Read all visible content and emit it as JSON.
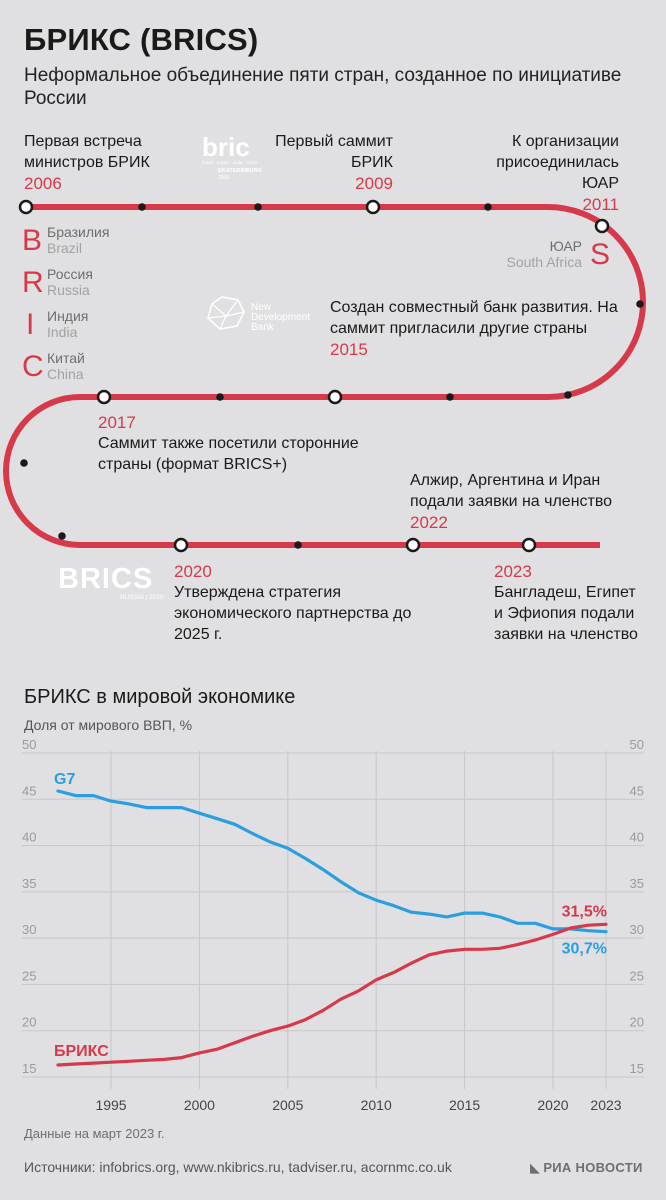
{
  "header": {
    "title": "БРИКС (BRICS)",
    "subtitle": "Неформальное объединение пяти стран, созданное по инициативе России"
  },
  "timeline": {
    "events": [
      {
        "year": "2006",
        "text": "Первая встреча министров БРИК"
      },
      {
        "year": "2009",
        "text": "Первый саммит БРИК"
      },
      {
        "year": "2011",
        "text": "К организации присоединилась ЮАР"
      },
      {
        "year": "2015",
        "text": "Создан совместный банк развития. На саммит пригласили другие страны"
      },
      {
        "year": "2017",
        "text": "Саммит также посетили сторонние страны (формат BRICS+)"
      },
      {
        "year": "2022",
        "text": "Алжир, Аргентина и Иран подали заявки на членство"
      },
      {
        "year": "2020",
        "text": "Утверждена стратегия экономического партнерства до 2025 г."
      },
      {
        "year": "2023",
        "text": "Бангладеш, Египет и Эфиопия подали заявки на членство"
      }
    ],
    "countries": [
      {
        "letter": "B",
        "ru": "Бразилия",
        "en": "Brazil"
      },
      {
        "letter": "R",
        "ru": "Россия",
        "en": "Russia"
      },
      {
        "letter": "I",
        "ru": "Индия",
        "en": "India"
      },
      {
        "letter": "C",
        "ru": "Китай",
        "en": "China"
      },
      {
        "letter": "S",
        "ru": "ЮАР",
        "en": "South Africa"
      }
    ],
    "logos": {
      "bric_word": "bric",
      "bric_sub": "brasil · russia · india · china",
      "bric_city": "EKATERINBURG",
      "bric_year": "2009",
      "ndb": "New Development Bank",
      "brics_word": "BRICS",
      "brics_sub": "RUSSIA | 2020"
    },
    "line_color": "#d63a4a"
  },
  "chart_section": {
    "title": "БРИКС в мировой экономике",
    "ylabel": "Доля от мирового ВВП, %"
  },
  "chart_data": {
    "type": "line",
    "title": "БРИКС в мировой экономике",
    "ylabel": "Доля от мирового ВВП, %",
    "xlabel": "",
    "ylim": [
      15,
      50
    ],
    "xlim": [
      1992,
      2023
    ],
    "yticks": [
      15,
      20,
      25,
      30,
      35,
      40,
      45,
      50
    ],
    "xticks": [
      1995,
      2000,
      2005,
      2010,
      2015,
      2020,
      2023
    ],
    "grid": true,
    "series": [
      {
        "name": "G7",
        "color": "#2b9ee0",
        "end_label": "30,7%",
        "x": [
          1992,
          1993,
          1994,
          1995,
          1996,
          1997,
          1998,
          1999,
          2000,
          2001,
          2002,
          2003,
          2004,
          2005,
          2006,
          2007,
          2008,
          2009,
          2010,
          2011,
          2012,
          2013,
          2014,
          2015,
          2016,
          2017,
          2018,
          2019,
          2020,
          2021,
          2022,
          2023
        ],
        "values": [
          45.9,
          45.4,
          45.4,
          44.8,
          44.5,
          44.1,
          44.1,
          44.1,
          43.5,
          42.9,
          42.3,
          41.3,
          40.4,
          39.7,
          38.6,
          37.4,
          36.1,
          34.9,
          34.1,
          33.5,
          32.8,
          32.6,
          32.3,
          32.7,
          32.7,
          32.3,
          31.6,
          31.6,
          31.0,
          31.0,
          30.8,
          30.7
        ]
      },
      {
        "name": "БРИКС",
        "color": "#d63a4a",
        "end_label": "31,5%",
        "x": [
          1992,
          1993,
          1994,
          1995,
          1996,
          1997,
          1998,
          1999,
          2000,
          2001,
          2002,
          2003,
          2004,
          2005,
          2006,
          2007,
          2008,
          2009,
          2010,
          2011,
          2012,
          2013,
          2014,
          2015,
          2016,
          2017,
          2018,
          2019,
          2020,
          2021,
          2022,
          2023
        ],
        "values": [
          16.3,
          16.4,
          16.5,
          16.6,
          16.7,
          16.8,
          16.9,
          17.1,
          17.6,
          18.0,
          18.7,
          19.4,
          20.0,
          20.5,
          21.2,
          22.2,
          23.4,
          24.3,
          25.5,
          26.3,
          27.3,
          28.2,
          28.6,
          28.8,
          28.8,
          28.9,
          29.3,
          29.8,
          30.4,
          31.1,
          31.4,
          31.5
        ]
      }
    ]
  },
  "footer": {
    "note": "Данные на март 2023 г.",
    "sources": "Источники: infobrics.org, www.nkibrics.ru, tadviser.ru, acornmc.co.uk",
    "publisher": "РИА НОВОСТИ"
  }
}
